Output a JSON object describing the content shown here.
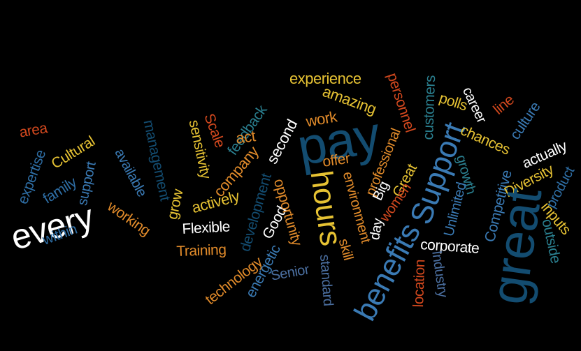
{
  "palette": {
    "white": "#ffffff",
    "yellow": "#e6c233",
    "orange": "#e08a2a",
    "red": "#d2481e",
    "dark_blue": "#134c70",
    "mid_blue": "#2e6ea5",
    "steel_blue": "#3a7ab4",
    "teal": "#2a7f8f",
    "slate": "#4b6fa0"
  },
  "words": [
    {
      "text": "every",
      "color": "#ffffff"
    },
    {
      "text": "area",
      "color": "#d2481e"
    },
    {
      "text": "expertise",
      "color": "#2e6ea5"
    },
    {
      "text": "Cultural",
      "color": "#e6c233"
    },
    {
      "text": "family",
      "color": "#2e6ea5"
    },
    {
      "text": "support",
      "color": "#3a7ab4"
    },
    {
      "text": "within",
      "color": "#2e6ea5"
    },
    {
      "text": "management",
      "color": "#134c70"
    },
    {
      "text": "available",
      "color": "#3a7ab4"
    },
    {
      "text": "working",
      "color": "#e08a2a"
    },
    {
      "text": "grow",
      "color": "#e6c233"
    },
    {
      "text": "sensitivity",
      "color": "#e6c233"
    },
    {
      "text": "Scale",
      "color": "#d2481e"
    },
    {
      "text": "feedback",
      "color": "#2a7f8f"
    },
    {
      "text": "act",
      "color": "#e08a2a"
    },
    {
      "text": "company",
      "color": "#e08a2a"
    },
    {
      "text": "actively",
      "color": "#e6c233"
    },
    {
      "text": "Flexible",
      "color": "#ffffff"
    },
    {
      "text": "Training",
      "color": "#e08a2a"
    },
    {
      "text": "technology",
      "color": "#e08a2a"
    },
    {
      "text": "development",
      "color": "#134c70"
    },
    {
      "text": "energetic",
      "color": "#3a7ab4"
    },
    {
      "text": "second",
      "color": "#ffffff"
    },
    {
      "text": "Good",
      "color": "#ffffff"
    },
    {
      "text": "opportunity",
      "color": "#e08a2a"
    },
    {
      "text": "Senior",
      "color": "#4b6fa0"
    },
    {
      "text": "experience",
      "color": "#e6c233"
    },
    {
      "text": "amazing",
      "color": "#e6c233"
    },
    {
      "text": "work",
      "color": "#e08a2a"
    },
    {
      "text": "pay",
      "color": "#134c70"
    },
    {
      "text": "hours",
      "color": "#e6c233"
    },
    {
      "text": "offer",
      "color": "#e08a2a"
    },
    {
      "text": "environment",
      "color": "#e08a2a"
    },
    {
      "text": "skill",
      "color": "#e08a2a"
    },
    {
      "text": "standard",
      "color": "#4b6fa0"
    },
    {
      "text": "benefits",
      "color": "#3a7ab4"
    },
    {
      "text": "professional",
      "color": "#e08a2a"
    },
    {
      "text": "personnel",
      "color": "#d2481e"
    },
    {
      "text": "Big",
      "color": "#ffffff"
    },
    {
      "text": "Great",
      "color": "#e6c233"
    },
    {
      "text": "women",
      "color": "#d2481e"
    },
    {
      "text": "day",
      "color": "#ffffff"
    },
    {
      "text": "Support",
      "color": "#3a7ab4"
    },
    {
      "text": "customers",
      "color": "#2a7f8f"
    },
    {
      "text": "polls",
      "color": "#e6c233"
    },
    {
      "text": "career",
      "color": "#ffffff"
    },
    {
      "text": "line",
      "color": "#d2481e"
    },
    {
      "text": "chances",
      "color": "#e6c233"
    },
    {
      "text": "culture",
      "color": "#3a7ab4"
    },
    {
      "text": "actually",
      "color": "#ffffff"
    },
    {
      "text": "growth",
      "color": "#2a7f8f"
    },
    {
      "text": "Competitive",
      "color": "#3a7ab4"
    },
    {
      "text": "Diversity",
      "color": "#e6c233"
    },
    {
      "text": "product",
      "color": "#2e6ea5"
    },
    {
      "text": "Unlimited",
      "color": "#3a7ab4"
    },
    {
      "text": "inputs",
      "color": "#e6c233"
    },
    {
      "text": "corporate",
      "color": "#ffffff"
    },
    {
      "text": "location",
      "color": "#d2481e"
    },
    {
      "text": "Industry",
      "color": "#4b6fa0"
    },
    {
      "text": "great",
      "color": "#134c70"
    },
    {
      "text": "outside",
      "color": "#2a7f8f"
    }
  ]
}
